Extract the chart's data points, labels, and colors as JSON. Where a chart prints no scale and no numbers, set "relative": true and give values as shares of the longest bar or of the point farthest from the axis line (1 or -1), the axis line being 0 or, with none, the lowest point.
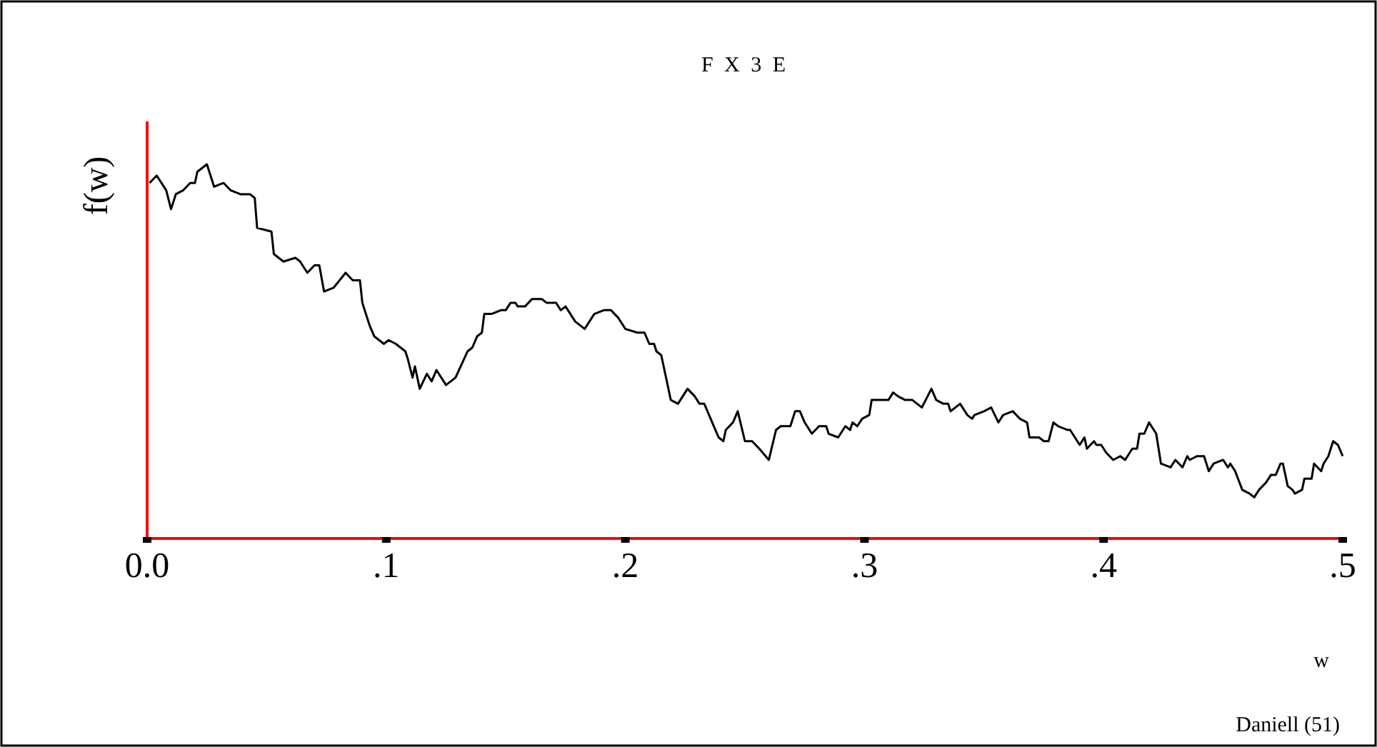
{
  "chart_data": {
    "type": "line",
    "title": "F X 3 E",
    "xlabel": "w",
    "ylabel": "f(w)",
    "annotations": [
      "Daniell (51)"
    ],
    "relative": true,
    "grid": false,
    "xlim": [
      0,
      0.5
    ],
    "xticks": [
      {
        "value": 0,
        "label": "0.0"
      },
      {
        "value": 0.1,
        "label": ".1"
      },
      {
        "value": 0.2,
        "label": ".2"
      },
      {
        "value": 0.3,
        "label": ".3"
      },
      {
        "value": 0.4,
        "label": ".4"
      },
      {
        "value": 0.5,
        "label": ".5"
      }
    ],
    "x": [
      0.001,
      0.004,
      0.008,
      0.01,
      0.012,
      0.015,
      0.018,
      0.02,
      0.021,
      0.025,
      0.028,
      0.032,
      0.035,
      0.039,
      0.043,
      0.045,
      0.046,
      0.052,
      0.053,
      0.057,
      0.062,
      0.064,
      0.067,
      0.07,
      0.072,
      0.074,
      0.078,
      0.083,
      0.086,
      0.089,
      0.09,
      0.093,
      0.095,
      0.099,
      0.101,
      0.104,
      0.108,
      0.109,
      0.111,
      0.112,
      0.114,
      0.117,
      0.119,
      0.121,
      0.125,
      0.129,
      0.134,
      0.136,
      0.138,
      0.14,
      0.141,
      0.144,
      0.148,
      0.15,
      0.152,
      0.154,
      0.155,
      0.158,
      0.161,
      0.164,
      0.165,
      0.167,
      0.171,
      0.173,
      0.175,
      0.179,
      0.183,
      0.187,
      0.191,
      0.194,
      0.197,
      0.2,
      0.205,
      0.208,
      0.21,
      0.212,
      0.213,
      0.215,
      0.217,
      0.219,
      0.222,
      0.226,
      0.229,
      0.231,
      0.233,
      0.235,
      0.237,
      0.239,
      0.241,
      0.242,
      0.245,
      0.247,
      0.25,
      0.253,
      0.256,
      0.26,
      0.263,
      0.265,
      0.269,
      0.271,
      0.273,
      0.275,
      0.278,
      0.281,
      0.284,
      0.285,
      0.289,
      0.292,
      0.294,
      0.295,
      0.297,
      0.299,
      0.302,
      0.303,
      0.306,
      0.31,
      0.312,
      0.314,
      0.317,
      0.32,
      0.324,
      0.328,
      0.33,
      0.333,
      0.335,
      0.336,
      0.338,
      0.34,
      0.343,
      0.345,
      0.346,
      0.35,
      0.353,
      0.356,
      0.358,
      0.362,
      0.365,
      0.368,
      0.369,
      0.373,
      0.375,
      0.377,
      0.379,
      0.381,
      0.385,
      0.386,
      0.39,
      0.392,
      0.393,
      0.396,
      0.397,
      0.399,
      0.401,
      0.404,
      0.407,
      0.409,
      0.412,
      0.414,
      0.415,
      0.417,
      0.419,
      0.422,
      0.424,
      0.428,
      0.43,
      0.433,
      0.435,
      0.436,
      0.439,
      0.442,
      0.444,
      0.446,
      0.45,
      0.452,
      0.453,
      0.455,
      0.458,
      0.461,
      0.463,
      0.465,
      0.468,
      0.47,
      0.472,
      0.474,
      0.475,
      0.477,
      0.479,
      0.48,
      0.483,
      0.484,
      0.487,
      0.488,
      0.491,
      0.492,
      0.494,
      0.496,
      0.498,
      0.5
    ],
    "series": [
      {
        "color": "#000000",
        "values": [
          0.95,
          0.97,
          0.93,
          0.88,
          0.92,
          0.93,
          0.95,
          0.95,
          0.98,
          1.0,
          0.94,
          0.95,
          0.93,
          0.92,
          0.92,
          0.91,
          0.83,
          0.82,
          0.76,
          0.74,
          0.75,
          0.74,
          0.71,
          0.73,
          0.73,
          0.66,
          0.67,
          0.71,
          0.69,
          0.69,
          0.63,
          0.57,
          0.54,
          0.52,
          0.53,
          0.52,
          0.5,
          0.48,
          0.43,
          0.46,
          0.4,
          0.44,
          0.42,
          0.45,
          0.41,
          0.43,
          0.5,
          0.51,
          0.54,
          0.55,
          0.6,
          0.6,
          0.61,
          0.61,
          0.63,
          0.63,
          0.62,
          0.62,
          0.64,
          0.64,
          0.64,
          0.63,
          0.63,
          0.61,
          0.62,
          0.58,
          0.56,
          0.6,
          0.61,
          0.61,
          0.59,
          0.56,
          0.55,
          0.55,
          0.52,
          0.52,
          0.5,
          0.49,
          0.43,
          0.37,
          0.36,
          0.4,
          0.38,
          0.36,
          0.36,
          0.33,
          0.3,
          0.27,
          0.26,
          0.29,
          0.31,
          0.34,
          0.26,
          0.26,
          0.24,
          0.21,
          0.29,
          0.3,
          0.3,
          0.34,
          0.34,
          0.31,
          0.28,
          0.3,
          0.3,
          0.28,
          0.27,
          0.3,
          0.29,
          0.31,
          0.3,
          0.32,
          0.33,
          0.37,
          0.37,
          0.37,
          0.39,
          0.38,
          0.37,
          0.37,
          0.35,
          0.4,
          0.37,
          0.36,
          0.36,
          0.34,
          0.35,
          0.36,
          0.33,
          0.32,
          0.33,
          0.34,
          0.35,
          0.31,
          0.33,
          0.34,
          0.32,
          0.31,
          0.27,
          0.27,
          0.26,
          0.26,
          0.31,
          0.3,
          0.29,
          0.29,
          0.25,
          0.27,
          0.24,
          0.26,
          0.25,
          0.25,
          0.23,
          0.21,
          0.22,
          0.21,
          0.24,
          0.24,
          0.28,
          0.28,
          0.31,
          0.28,
          0.2,
          0.19,
          0.21,
          0.19,
          0.22,
          0.21,
          0.22,
          0.22,
          0.18,
          0.2,
          0.21,
          0.19,
          0.2,
          0.18,
          0.13,
          0.12,
          0.11,
          0.13,
          0.15,
          0.17,
          0.17,
          0.2,
          0.2,
          0.14,
          0.13,
          0.12,
          0.13,
          0.16,
          0.16,
          0.2,
          0.18,
          0.2,
          0.22,
          0.26,
          0.25,
          0.22
        ]
      }
    ]
  }
}
